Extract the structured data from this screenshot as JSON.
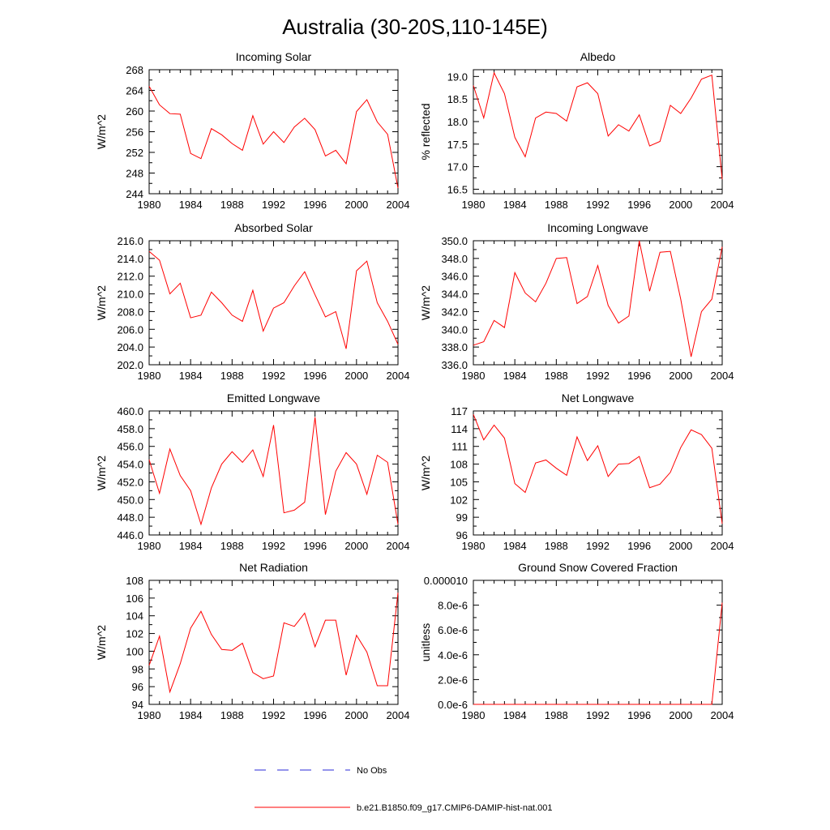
{
  "figure_title": "Australia (30-20S,110-145E)",
  "legend": {
    "obs_label": "No Obs",
    "model_label": "b.e21.B1850.f09_g17.CMIP6-DAMIP-hist-nat.001",
    "model_color": "#ff0000",
    "obs_color": "#2a2ad8"
  },
  "chart_data": [
    {
      "type": "line",
      "title": "Incoming Solar",
      "ylabel": "W/m^2",
      "xlim": [
        1980,
        2004
      ],
      "ylim": [
        244,
        268
      ],
      "x_ticks": [
        1980,
        1984,
        1988,
        1992,
        1996,
        2000,
        2004
      ],
      "y_ticks": [
        "244",
        "248",
        "252",
        "256",
        "260",
        "264",
        "268"
      ],
      "y_tick_values": [
        244,
        248,
        252,
        256,
        260,
        264,
        268
      ],
      "series": [
        {
          "x": [
            1980,
            1981,
            1982,
            1983,
            1984,
            1985,
            1986,
            1987,
            1988,
            1989,
            1990,
            1991,
            1992,
            1993,
            1994,
            1995,
            1996,
            1997,
            1998,
            1999,
            2000,
            2001,
            2002,
            2003,
            2004
          ],
          "values": [
            264.8,
            261.2,
            259.5,
            259.4,
            251.8,
            250.8,
            256.6,
            255.4,
            253.7,
            252.4,
            259.1,
            253.6,
            256.0,
            253.9,
            256.9,
            258.6,
            256.4,
            251.3,
            252.4,
            249.8,
            259.9,
            262.2,
            257.9,
            255.5,
            245.1
          ]
        }
      ]
    },
    {
      "type": "line",
      "title": "Albedo",
      "ylabel": "% reflected",
      "xlim": [
        1980,
        2004
      ],
      "ylim": [
        16.4,
        19.15
      ],
      "x_ticks": [
        1980,
        1984,
        1988,
        1992,
        1996,
        2000,
        2004
      ],
      "y_ticks": [
        "16.5",
        "17.0",
        "17.5",
        "18.0",
        "18.5",
        "19.0"
      ],
      "y_tick_values": [
        16.5,
        17.0,
        17.5,
        18.0,
        18.5,
        19.0
      ],
      "series": [
        {
          "x": [
            1980,
            1981,
            1982,
            1983,
            1984,
            1985,
            1986,
            1987,
            1988,
            1989,
            1990,
            1991,
            1992,
            1993,
            1994,
            1995,
            1996,
            1997,
            1998,
            1999,
            2000,
            2001,
            2002,
            2003,
            2004
          ],
          "values": [
            18.8,
            18.08,
            19.08,
            18.62,
            17.65,
            17.22,
            18.08,
            18.21,
            18.18,
            18.01,
            18.77,
            18.86,
            18.62,
            17.68,
            17.93,
            17.79,
            18.15,
            17.46,
            17.56,
            18.36,
            18.18,
            18.52,
            18.94,
            19.03,
            16.72
          ]
        }
      ]
    },
    {
      "type": "line",
      "title": "Absorbed Solar",
      "ylabel": "W/m^2",
      "xlim": [
        1980,
        2004
      ],
      "ylim": [
        202,
        216
      ],
      "x_ticks": [
        1980,
        1984,
        1988,
        1992,
        1996,
        2000,
        2004
      ],
      "y_ticks": [
        "202.0",
        "204.0",
        "206.0",
        "208.0",
        "210.0",
        "212.0",
        "214.0",
        "216.0"
      ],
      "y_tick_values": [
        202,
        204,
        206,
        208,
        210,
        212,
        214,
        216
      ],
      "series": [
        {
          "x": [
            1980,
            1981,
            1982,
            1983,
            1984,
            1985,
            1986,
            1987,
            1988,
            1989,
            1990,
            1991,
            1992,
            1993,
            1994,
            1995,
            1996,
            1997,
            1998,
            1999,
            2000,
            2001,
            2002,
            2003,
            2004
          ],
          "values": [
            214.8,
            213.8,
            210.0,
            211.2,
            207.3,
            207.6,
            210.2,
            209.0,
            207.6,
            206.9,
            210.4,
            205.8,
            208.4,
            209.0,
            210.9,
            212.5,
            209.9,
            207.4,
            208.0,
            203.8,
            212.6,
            213.7,
            209.0,
            206.9,
            204.3
          ]
        }
      ]
    },
    {
      "type": "line",
      "title": "Incoming Longwave",
      "ylabel": "W/m^2",
      "xlim": [
        1980,
        2004
      ],
      "ylim": [
        336,
        350
      ],
      "x_ticks": [
        1980,
        1984,
        1988,
        1992,
        1996,
        2000,
        2004
      ],
      "y_ticks": [
        "336.0",
        "338.0",
        "340.0",
        "342.0",
        "344.0",
        "346.0",
        "348.0",
        "350.0"
      ],
      "y_tick_values": [
        336,
        338,
        340,
        342,
        344,
        346,
        348,
        350
      ],
      "series": [
        {
          "x": [
            1980,
            1981,
            1982,
            1983,
            1984,
            1985,
            1986,
            1987,
            1988,
            1989,
            1990,
            1991,
            1992,
            1993,
            1994,
            1995,
            1996,
            1997,
            1998,
            1999,
            2000,
            2001,
            2002,
            2003,
            2004
          ],
          "values": [
            338.2,
            338.6,
            341.0,
            340.2,
            346.4,
            344.1,
            343.1,
            345.2,
            348.0,
            348.1,
            342.9,
            343.7,
            347.2,
            342.7,
            340.7,
            341.5,
            350.0,
            344.3,
            348.7,
            348.8,
            343.4,
            336.9,
            342.0,
            343.4,
            349.3
          ]
        }
      ]
    },
    {
      "type": "line",
      "title": "Emitted Longwave",
      "ylabel": "W/m^2",
      "xlim": [
        1980,
        2004
      ],
      "ylim": [
        446,
        460
      ],
      "x_ticks": [
        1980,
        1984,
        1988,
        1992,
        1996,
        2000,
        2004
      ],
      "y_ticks": [
        "446.0",
        "448.0",
        "450.0",
        "452.0",
        "454.0",
        "456.0",
        "458.0",
        "460.0"
      ],
      "y_tick_values": [
        446,
        448,
        450,
        452,
        454,
        456,
        458,
        460
      ],
      "series": [
        {
          "x": [
            1980,
            1981,
            1982,
            1983,
            1984,
            1985,
            1986,
            1987,
            1988,
            1989,
            1990,
            1991,
            1992,
            1993,
            1994,
            1995,
            1996,
            1997,
            1998,
            1999,
            2000,
            2001,
            2002,
            2003,
            2004
          ],
          "values": [
            454.5,
            450.7,
            455.7,
            452.7,
            451.0,
            447.2,
            451.3,
            454.0,
            455.4,
            454.2,
            455.6,
            452.6,
            458.4,
            448.5,
            448.8,
            449.7,
            459.3,
            448.3,
            453.2,
            455.3,
            454.0,
            450.6,
            455.0,
            454.2,
            447.2
          ]
        }
      ]
    },
    {
      "type": "line",
      "title": "Net Longwave",
      "ylabel": "W/m^2",
      "xlim": [
        1980,
        2004
      ],
      "ylim": [
        96,
        117
      ],
      "x_ticks": [
        1980,
        1984,
        1988,
        1992,
        1996,
        2000,
        2004
      ],
      "y_ticks": [
        "96",
        "99",
        "102",
        "105",
        "108",
        "111",
        "114",
        "117"
      ],
      "y_tick_values": [
        96,
        99,
        102,
        105,
        108,
        111,
        114,
        117
      ],
      "series": [
        {
          "x": [
            1980,
            1981,
            1982,
            1983,
            1984,
            1985,
            1986,
            1987,
            1988,
            1989,
            1990,
            1991,
            1992,
            1993,
            1994,
            1995,
            1996,
            1997,
            1998,
            1999,
            2000,
            2001,
            2002,
            2003,
            2004
          ],
          "values": [
            116.4,
            112.1,
            114.6,
            112.4,
            104.7,
            103.2,
            108.2,
            108.7,
            107.3,
            106.1,
            112.6,
            108.6,
            111.1,
            105.9,
            108.0,
            108.1,
            109.3,
            104.0,
            104.6,
            106.6,
            110.8,
            113.8,
            113.0,
            110.7,
            97.9
          ]
        }
      ]
    },
    {
      "type": "line",
      "title": "Net Radiation",
      "ylabel": "W/m^2",
      "xlim": [
        1980,
        2004
      ],
      "ylim": [
        94,
        108
      ],
      "x_ticks": [
        1980,
        1984,
        1988,
        1992,
        1996,
        2000,
        2004
      ],
      "y_ticks": [
        "94",
        "96",
        "98",
        "100",
        "102",
        "104",
        "106",
        "108"
      ],
      "y_tick_values": [
        94,
        96,
        98,
        100,
        102,
        104,
        106,
        108
      ],
      "series": [
        {
          "x": [
            1980,
            1981,
            1982,
            1983,
            1984,
            1985,
            1986,
            1987,
            1988,
            1989,
            1990,
            1991,
            1992,
            1993,
            1994,
            1995,
            1996,
            1997,
            1998,
            1999,
            2000,
            2001,
            2002,
            2003,
            2004
          ],
          "values": [
            98.4,
            101.7,
            95.4,
            98.6,
            102.6,
            104.5,
            101.9,
            100.2,
            100.1,
            100.9,
            97.6,
            96.9,
            97.2,
            103.2,
            102.8,
            104.3,
            100.5,
            103.5,
            103.5,
            97.3,
            101.8,
            99.9,
            96.1,
            96.1,
            106.6
          ]
        }
      ]
    },
    {
      "type": "line",
      "title": "Ground Snow Covered Fraction",
      "ylabel": "unitless",
      "xlim": [
        1980,
        2004
      ],
      "ylim": [
        0,
        1e-05
      ],
      "x_ticks": [
        1980,
        1984,
        1988,
        1992,
        1996,
        2000,
        2004
      ],
      "y_ticks": [
        "0.0e-6",
        "2.0e-6",
        "4.0e-6",
        "6.0e-6",
        "8.0e-6",
        "0.000010"
      ],
      "y_tick_values": [
        0,
        2e-06,
        4e-06,
        6e-06,
        8e-06,
        1e-05
      ],
      "series": [
        {
          "x": [
            1980,
            1981,
            1982,
            1983,
            1984,
            1985,
            1986,
            1987,
            1988,
            1989,
            1990,
            1991,
            1992,
            1993,
            1994,
            1995,
            1996,
            1997,
            1998,
            1999,
            2000,
            2001,
            2002,
            2003,
            2004
          ],
          "values": [
            0,
            0,
            0,
            0,
            0,
            0,
            0,
            0,
            0,
            0,
            0,
            0,
            0,
            0,
            0,
            0,
            0,
            0,
            0,
            0,
            0,
            0,
            0,
            0,
            8.2e-06
          ]
        }
      ]
    }
  ]
}
